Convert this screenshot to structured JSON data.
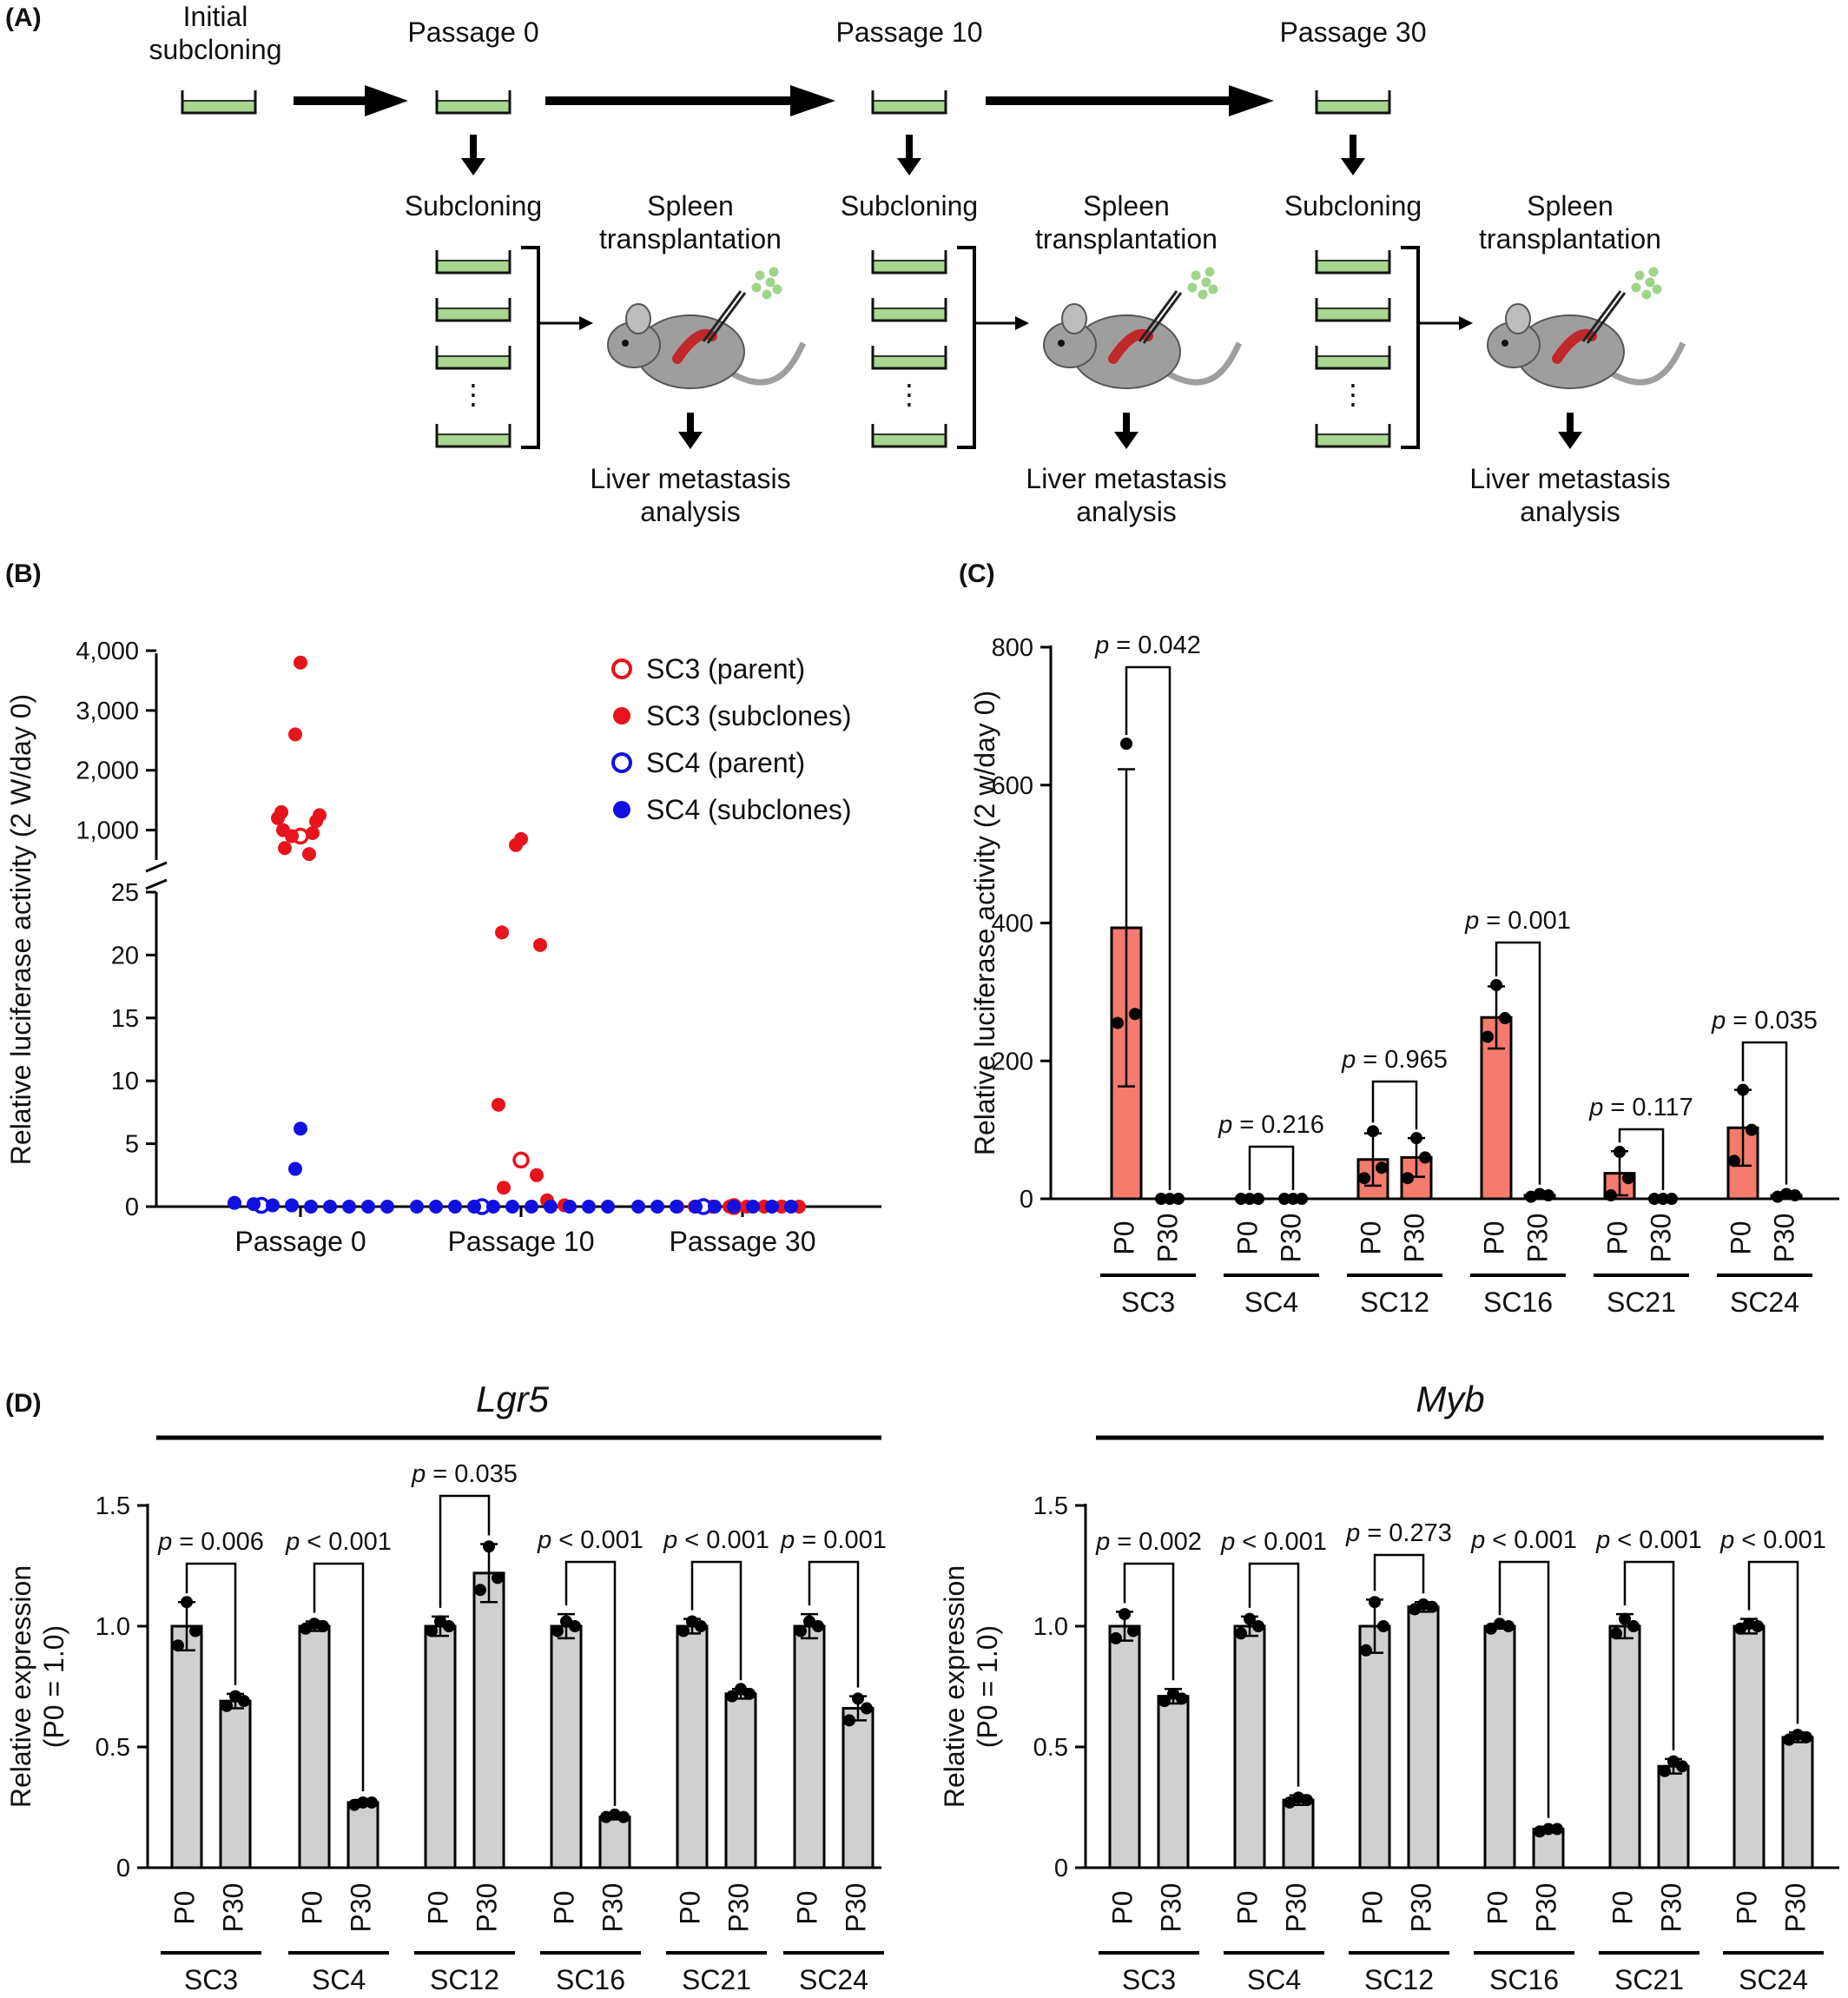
{
  "panel_labels": [
    "(A)",
    "(B)",
    "(C)",
    "(D)"
  ],
  "panel_a": {
    "stages": [
      "Initial subcloning",
      "Passage 0",
      "Passage 10",
      "Passage 30"
    ],
    "step_subcloning": "Subcloning",
    "step_spleen": "Spleen transplantation",
    "step_liver": "Liver metastasis analysis",
    "ellipsis": "⋮",
    "colors": {
      "dish": "#a8d58f",
      "mouse": "#9e9e9e",
      "spleen": "#c0282c",
      "cells": "#9fd48b"
    }
  },
  "chart_data": [
    {
      "id": "B",
      "type": "scatter",
      "ylabel": "Relative luciferase activity (2 W/day 0)",
      "categories": [
        "Passage 0",
        "Passage 10",
        "Passage 30"
      ],
      "y_axis_broken": true,
      "y_lower": {
        "range": [
          0,
          25
        ],
        "ticks": [
          "0",
          "5",
          "10",
          "15",
          "20",
          "25"
        ]
      },
      "y_upper": {
        "range": [
          500,
          4000
        ],
        "ticks": [
          "1,000",
          "2,000",
          "3,000",
          "4,000"
        ]
      },
      "legend": [
        {
          "name": "SC3 (parent)",
          "color": "#e8141b",
          "filled": false
        },
        {
          "name": "SC3 (subclones)",
          "color": "#e8141b",
          "filled": true
        },
        {
          "name": "SC4 (parent)",
          "color": "#1010e0",
          "filled": false
        },
        {
          "name": "SC4 (subclones)",
          "color": "#1010e0",
          "filled": true
        }
      ],
      "legend_position": "top-right",
      "series": [
        {
          "name": "SC3 (parent)",
          "points": [
            [
              "Passage 0",
              900
            ],
            [
              "Passage 10",
              3.7
            ],
            [
              "Passage 30",
              0
            ]
          ]
        },
        {
          "name": "SC3 (subclones)",
          "points": [
            [
              "Passage 0",
              3800
            ],
            [
              "Passage 0",
              2600
            ],
            [
              "Passage 0",
              1300
            ],
            [
              "Passage 0",
              1250
            ],
            [
              "Passage 0",
              1200
            ],
            [
              "Passage 0",
              1150
            ],
            [
              "Passage 0",
              1000
            ],
            [
              "Passage 0",
              950
            ],
            [
              "Passage 0",
              900
            ],
            [
              "Passage 0",
              700
            ],
            [
              "Passage 0",
              600
            ],
            [
              "Passage 10",
              850
            ],
            [
              "Passage 10",
              750
            ],
            [
              "Passage 10",
              21.8
            ],
            [
              "Passage 10",
              20.8
            ],
            [
              "Passage 10",
              8.1
            ],
            [
              "Passage 10",
              2.5
            ],
            [
              "Passage 10",
              1.5
            ],
            [
              "Passage 10",
              0.5
            ],
            [
              "Passage 10",
              0.1
            ],
            [
              "Passage 30",
              0
            ],
            [
              "Passage 30",
              0
            ],
            [
              "Passage 30",
              0
            ],
            [
              "Passage 30",
              0
            ],
            [
              "Passage 30",
              0
            ],
            [
              "Passage 30",
              0
            ],
            [
              "Passage 30",
              0
            ],
            [
              "Passage 30",
              0
            ]
          ]
        },
        {
          "name": "SC4 (parent)",
          "points": [
            [
              "Passage 0",
              0.1
            ],
            [
              "Passage 10",
              0
            ],
            [
              "Passage 30",
              0
            ]
          ]
        },
        {
          "name": "SC4 (subclones)",
          "points": [
            [
              "Passage 0",
              6.2
            ],
            [
              "Passage 0",
              3.0
            ],
            [
              "Passage 0",
              0.3
            ],
            [
              "Passage 0",
              0.2
            ],
            [
              "Passage 0",
              0.1
            ],
            [
              "Passage 0",
              0.1
            ],
            [
              "Passage 0",
              0
            ],
            [
              "Passage 0",
              0
            ],
            [
              "Passage 0",
              0
            ],
            [
              "Passage 0",
              0
            ],
            [
              "Passage 0",
              0
            ],
            [
              "Passage 10",
              0
            ],
            [
              "Passage 10",
              0
            ],
            [
              "Passage 10",
              0
            ],
            [
              "Passage 10",
              0
            ],
            [
              "Passage 10",
              0
            ],
            [
              "Passage 10",
              0
            ],
            [
              "Passage 10",
              0
            ],
            [
              "Passage 10",
              0
            ],
            [
              "Passage 10",
              0
            ],
            [
              "Passage 10",
              0
            ],
            [
              "Passage 10",
              0
            ],
            [
              "Passage 30",
              0
            ],
            [
              "Passage 30",
              0
            ],
            [
              "Passage 30",
              0
            ],
            [
              "Passage 30",
              0
            ],
            [
              "Passage 30",
              0
            ],
            [
              "Passage 30",
              0
            ],
            [
              "Passage 30",
              0
            ],
            [
              "Passage 30",
              0
            ],
            [
              "Passage 30",
              0
            ]
          ]
        }
      ]
    },
    {
      "id": "C",
      "type": "bar",
      "ylabel": "Relative luciferase activity (2 w/day 0)",
      "ylim": [
        0,
        800
      ],
      "yticks": [
        "0",
        "200",
        "400",
        "600",
        "800"
      ],
      "groups": [
        "SC3",
        "SC4",
        "SC12",
        "SC16",
        "SC21",
        "SC24"
      ],
      "bar_labels": [
        "P0",
        "P30"
      ],
      "bar_color": "#f47c6c",
      "p_values": [
        "p = 0.042",
        "p = 0.216",
        "p = 0.965",
        "p = 0.001",
        "p = 0.117",
        "p = 0.035"
      ],
      "series": [
        {
          "name": "P0",
          "values": [
            393,
            0,
            57,
            263,
            37,
            103
          ],
          "errors": [
            230,
            0,
            38,
            45,
            32,
            55
          ],
          "points": [
            [
              660,
              268,
              255
            ],
            [
              0,
              0,
              0
            ],
            [
              98,
              45,
              30
            ],
            [
              310,
              262,
              235
            ],
            [
              68,
              30,
              5
            ],
            [
              158,
              100,
              55
            ]
          ]
        },
        {
          "name": "P30",
          "values": [
            0,
            0,
            60,
            5,
            0,
            5
          ],
          "errors": [
            0,
            0,
            28,
            3,
            0,
            3
          ],
          "points": [
            [
              0,
              0,
              0
            ],
            [
              0,
              0,
              0
            ],
            [
              88,
              60,
              30
            ],
            [
              7,
              5,
              3
            ],
            [
              0,
              0,
              0
            ],
            [
              7,
              5,
              3
            ]
          ]
        }
      ]
    },
    {
      "id": "D-Lgr5",
      "type": "bar",
      "title": "Lgr5",
      "ylabel": "Relative expression (P0 = 1.0)",
      "ylim": [
        0,
        1.5
      ],
      "yticks": [
        "0",
        "0.5",
        "1.0",
        "1.5"
      ],
      "groups": [
        "SC3",
        "SC4",
        "SC12",
        "SC16",
        "SC21",
        "SC24"
      ],
      "bar_labels": [
        "P0",
        "P30"
      ],
      "bar_color": "#d0d0d0",
      "p_values": [
        "p = 0.006",
        "p < 0.001",
        "p = 0.035",
        "p < 0.001",
        "p < 0.001",
        "p = 0.001"
      ],
      "series": [
        {
          "name": "P0",
          "values": [
            1.0,
            1.0,
            1.0,
            1.0,
            1.0,
            1.0
          ],
          "errors": [
            0.1,
            0.02,
            0.04,
            0.05,
            0.03,
            0.05
          ],
          "points": [
            [
              1.1,
              0.98,
              0.92
            ],
            [
              1.01,
              1.0,
              0.99
            ],
            [
              1.02,
              1.0,
              0.98
            ],
            [
              1.02,
              1.0,
              0.98
            ],
            [
              1.02,
              1.0,
              0.98
            ],
            [
              1.02,
              1.0,
              0.98
            ]
          ]
        },
        {
          "name": "P30",
          "values": [
            0.69,
            0.27,
            1.22,
            0.21,
            0.72,
            0.66
          ],
          "errors": [
            0.03,
            0.01,
            0.12,
            0.01,
            0.02,
            0.05
          ],
          "points": [
            [
              0.71,
              0.69,
              0.67
            ],
            [
              0.27,
              0.27,
              0.26
            ],
            [
              1.33,
              1.2,
              1.15
            ],
            [
              0.22,
              0.21,
              0.21
            ],
            [
              0.74,
              0.72,
              0.71
            ],
            [
              0.7,
              0.66,
              0.61
            ]
          ]
        }
      ]
    },
    {
      "id": "D-Myb",
      "type": "bar",
      "title": "Myb",
      "ylabel": "Relative expression (P0 = 1.0)",
      "ylim": [
        0,
        1.5
      ],
      "yticks": [
        "0",
        "0.5",
        "1.0",
        "1.5"
      ],
      "groups": [
        "SC3",
        "SC4",
        "SC12",
        "SC16",
        "SC21",
        "SC24"
      ],
      "bar_labels": [
        "P0",
        "P30"
      ],
      "bar_color": "#d0d0d0",
      "p_values": [
        "p = 0.002",
        "p < 0.001",
        "p = 0.273",
        "p < 0.001",
        "p < 0.001",
        "p < 0.001"
      ],
      "series": [
        {
          "name": "P0",
          "values": [
            1.0,
            1.0,
            1.0,
            1.0,
            1.0,
            1.0
          ],
          "errors": [
            0.06,
            0.04,
            0.11,
            0.01,
            0.05,
            0.03
          ],
          "points": [
            [
              1.05,
              0.98,
              0.95
            ],
            [
              1.03,
              1.0,
              0.97
            ],
            [
              1.1,
              1.0,
              0.9
            ],
            [
              1.01,
              1.0,
              0.99
            ],
            [
              1.03,
              1.0,
              0.97
            ],
            [
              1.01,
              1.0,
              0.99
            ]
          ]
        },
        {
          "name": "P30",
          "values": [
            0.71,
            0.28,
            1.08,
            0.16,
            0.42,
            0.54
          ],
          "errors": [
            0.03,
            0.02,
            0.02,
            0.01,
            0.03,
            0.02
          ],
          "points": [
            [
              0.72,
              0.7,
              0.69
            ],
            [
              0.29,
              0.28,
              0.27
            ],
            [
              1.09,
              1.08,
              1.07
            ],
            [
              0.16,
              0.16,
              0.15
            ],
            [
              0.44,
              0.42,
              0.4
            ],
            [
              0.55,
              0.54,
              0.53
            ]
          ]
        }
      ]
    }
  ]
}
